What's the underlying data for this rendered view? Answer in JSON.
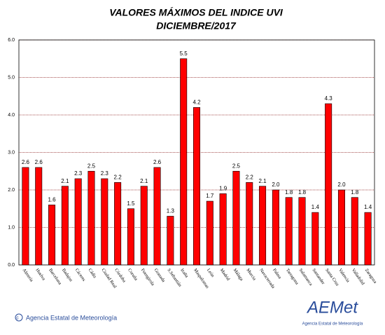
{
  "chart_data": {
    "type": "bar",
    "title": "VALORES MÁXIMOS DEL INDICE UVI",
    "subtitle": "DICIEMBRE/2017",
    "categories": [
      "Almería",
      "Huelva",
      "Barcelona",
      "Badajoz",
      "Cáceres",
      "Cádiz",
      "Ciudad Real",
      "Córdoba",
      "Coruña",
      "Fuengirola",
      "Granada",
      "S.Sebastián",
      "Izaña",
      "Maspalomas",
      "León",
      "Madrid",
      "Málaga",
      "Murcia",
      "Navacerrada",
      "Palma",
      "Tarragona",
      "Salamanca",
      "Santander",
      "Santa Cruz",
      "Valencia",
      "Valladolid",
      "Zaragoza"
    ],
    "values": [
      2.6,
      2.6,
      1.6,
      2.1,
      2.3,
      2.5,
      2.3,
      2.2,
      1.5,
      2.1,
      2.6,
      1.3,
      5.5,
      4.2,
      1.7,
      1.9,
      2.5,
      2.2,
      2.1,
      2.0,
      1.8,
      1.8,
      1.4,
      4.3,
      2.0,
      1.8,
      1.4
    ],
    "value_labels": [
      "2.6",
      "2.6",
      "1.6",
      "2.1",
      "2.3",
      "2.5",
      "2.3",
      "2.2",
      "1.5",
      "2.1",
      "2.6",
      "1.3",
      "5.5",
      "4.2",
      "1.7",
      "1.9",
      "2.5",
      "2.2",
      "2.1",
      "2.0",
      "1.8",
      "1.8",
      "1.4",
      "4.3",
      "2.0",
      "1.8",
      "1.4"
    ],
    "color": "#ff0000",
    "ylim": [
      0,
      6
    ],
    "yticks": [
      {
        "value": 0,
        "label": "0.0"
      },
      {
        "value": 1,
        "label": "1.0"
      },
      {
        "value": 2,
        "label": "2.0"
      },
      {
        "value": 3,
        "label": "3.0"
      },
      {
        "value": 4,
        "label": "4.0"
      },
      {
        "value": 5,
        "label": "5.0"
      },
      {
        "value": 6,
        "label": "6.0"
      }
    ],
    "grid": true
  },
  "footer": {
    "copyright": "Agencia Estatal de Meteorología",
    "logo": "AEMet",
    "logo_caption": "Agencia Estatal de Meteorología"
  }
}
